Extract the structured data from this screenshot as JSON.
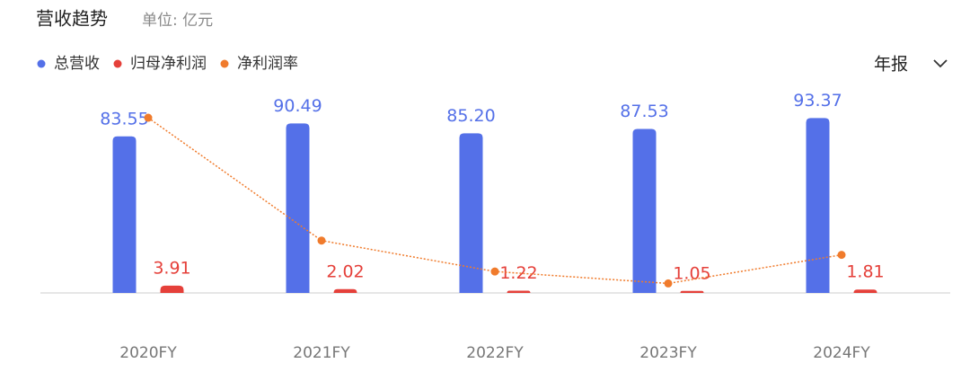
{
  "control": "年报",
  "chart_data": {
    "type": "bar",
    "title": "营收趋势",
    "subtitle": "单位: 亿元",
    "categories": [
      "2020FY",
      "2021FY",
      "2022FY",
      "2023FY",
      "2024FY"
    ],
    "series": [
      {
        "name": "总营收",
        "color": "#5470e8",
        "values": [
          83.55,
          90.49,
          85.2,
          87.53,
          93.37
        ],
        "value_labels": [
          "83.55",
          "90.49",
          "85.20",
          "87.53",
          "93.37"
        ]
      },
      {
        "name": "归母净利润",
        "color": "#e5403a",
        "values": [
          3.91,
          2.02,
          1.22,
          1.05,
          1.81
        ]
      },
      {
        "name": "净利润率",
        "type": "line",
        "axis": "y2",
        "color": "#f07b2c",
        "values": [
          4.68,
          2.1,
          1.45,
          1.2,
          1.8
        ]
      }
    ],
    "ylim": [
      0,
      94
    ],
    "y2lim": [
      1,
      4.7
    ]
  }
}
